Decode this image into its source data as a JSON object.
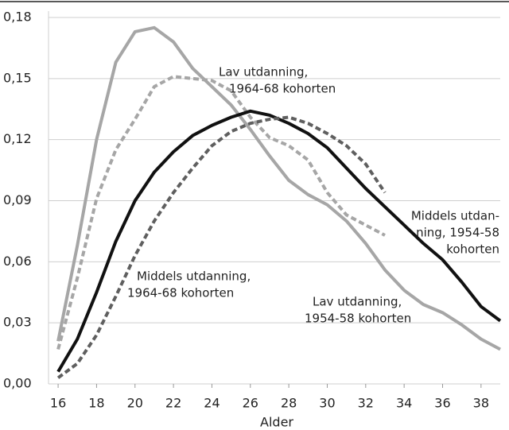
{
  "chart_data": {
    "type": "line",
    "x_label": "Alder",
    "x": [
      16,
      17,
      18,
      19,
      20,
      21,
      22,
      23,
      24,
      25,
      26,
      27,
      28,
      29,
      30,
      31,
      32,
      33,
      34,
      35,
      36,
      37,
      38,
      39
    ],
    "xlim": [
      15.5,
      39
    ],
    "xticks": [
      16,
      18,
      20,
      22,
      24,
      26,
      28,
      30,
      32,
      34,
      36,
      38
    ],
    "ylim": [
      0,
      0.18
    ],
    "yticks": [
      {
        "value": 0,
        "label": "0,00"
      },
      {
        "value": 0.03,
        "label": "0,03"
      },
      {
        "value": 0.06,
        "label": "0,06"
      },
      {
        "value": 0.09,
        "label": "0,09"
      },
      {
        "value": 0.12,
        "label": "0,12"
      },
      {
        "value": 0.15,
        "label": "0,15"
      },
      {
        "value": 0.18,
        "label": "0,18"
      }
    ],
    "grid": true,
    "series": [
      {
        "label": [
          "Lav utdanning,",
          "1954-58 kohorten"
        ],
        "color": "#a6a6a6",
        "dashed": false,
        "values": [
          0.021,
          0.068,
          0.12,
          0.158,
          0.173,
          0.175,
          0.168,
          0.155,
          0.146,
          0.137,
          0.125,
          0.112,
          0.1,
          0.093,
          0.088,
          0.08,
          0.069,
          0.056,
          0.046,
          0.039,
          0.035,
          0.029,
          0.022,
          0.017
        ]
      },
      {
        "label": [
          "Lav utdanning,",
          "1964-68 kohorten"
        ],
        "color": "#a6a6a6",
        "dashed": true,
        "values": [
          0.017,
          0.052,
          0.091,
          0.115,
          0.13,
          0.146,
          0.151,
          0.15,
          0.149,
          0.144,
          0.131,
          0.121,
          0.117,
          0.11,
          0.094,
          0.083,
          0.078,
          0.073,
          null,
          null,
          null,
          null,
          null,
          null
        ]
      },
      {
        "label": [
          "Middels utdan-",
          "ning, 1954-58",
          "kohorten"
        ],
        "color": "#111111",
        "dashed": false,
        "values": [
          0.006,
          0.022,
          0.045,
          0.07,
          0.09,
          0.104,
          0.114,
          0.122,
          0.127,
          0.131,
          0.134,
          0.132,
          0.128,
          0.123,
          0.116,
          0.106,
          0.096,
          0.087,
          0.078,
          0.069,
          0.061,
          0.05,
          0.038,
          0.031
        ]
      },
      {
        "label": [
          "Middels utdanning,",
          "1964-68 kohorten"
        ],
        "color": "#5f5f5f",
        "dashed": true,
        "values": [
          0.003,
          0.01,
          0.024,
          0.043,
          0.063,
          0.08,
          0.094,
          0.106,
          0.117,
          0.124,
          0.128,
          0.13,
          0.131,
          0.128,
          0.123,
          0.117,
          0.108,
          0.094,
          null,
          null,
          null,
          null,
          null,
          null
        ]
      }
    ]
  }
}
